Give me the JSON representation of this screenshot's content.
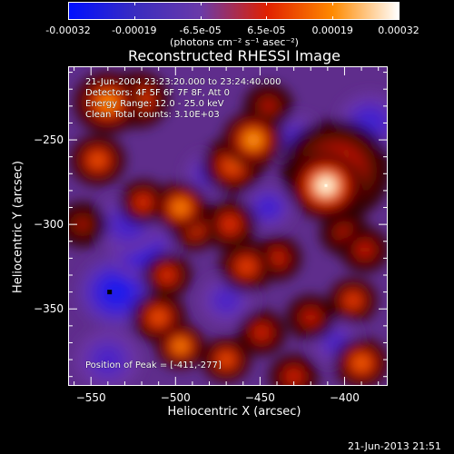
{
  "colorbar": {
    "tick_labels": [
      "-0.00032",
      "-0.00019",
      "-6.5e-05",
      "6.5e-05",
      "0.00019",
      "0.00032"
    ],
    "units": "(photons cm⁻² s⁻¹ asec⁻²)",
    "range": [
      -0.00032,
      0.00032
    ],
    "colors": [
      "#0010ff",
      "#3a2cc0",
      "#6a3aa8",
      "#e02000",
      "#ff8a00",
      "#ffffff"
    ]
  },
  "title": "Reconstructed RHESSI Image",
  "info_lines": [
    "21-Jun-2004 23:23:20.000 to 23:24:40.000",
    "Detectors: 4F 5F 6F 7F 8F, Att 0",
    "Energy Range: 12.0 - 25.0 keV",
    "Clean     Total counts: 3.10E+03"
  ],
  "peak_text": "Position of Peak = [-411,-277]",
  "peak_marker": {
    "x": -411,
    "y": -277
  },
  "min_marker": {
    "x": -539,
    "y": -340
  },
  "axes": {
    "xlabel": "Heliocentric X (arcsec)",
    "ylabel": "Heliocentric Y (arcsec)",
    "xlim": [
      -563,
      -375
    ],
    "ylim": [
      -395,
      -207
    ],
    "xtick_values": [
      -550,
      -500,
      -450,
      -400
    ],
    "xtick_labels": [
      "−550",
      "−500",
      "−450",
      "−400"
    ],
    "ytick_values": [
      -250,
      -300,
      -350
    ],
    "ytick_labels": [
      "−250",
      "−300",
      "−350"
    ]
  },
  "footer_timestamp": "21-Jun-2013 21:51",
  "chart_data": {
    "type": "heatmap",
    "title": "Reconstructed RHESSI Image",
    "xlabel": "Heliocentric X (arcsec)",
    "ylabel": "Heliocentric Y (arcsec)",
    "xlim": [
      -563,
      -375
    ],
    "ylim": [
      -395,
      -207
    ],
    "colorbar_range": [
      -0.00032,
      0.00032
    ],
    "colorbar_units": "(photons cm⁻² s⁻¹ asec⁻²)",
    "peak": [
      -411,
      -277
    ],
    "blobs": [
      {
        "x": -411,
        "y": -277,
        "v": 1.0,
        "s": 12
      },
      {
        "x": -405,
        "y": -268,
        "v": 0.55,
        "s": 18
      },
      {
        "x": -454,
        "y": -250,
        "v": 0.75,
        "s": 10
      },
      {
        "x": -466,
        "y": -265,
        "v": 0.55,
        "s": 10
      },
      {
        "x": -540,
        "y": -228,
        "v": 0.7,
        "s": 11
      },
      {
        "x": -522,
        "y": -226,
        "v": 0.55,
        "s": 10
      },
      {
        "x": -546,
        "y": -262,
        "v": 0.55,
        "s": 9
      },
      {
        "x": -497,
        "y": -290,
        "v": 0.7,
        "s": 9
      },
      {
        "x": -489,
        "y": -302,
        "v": 0.5,
        "s": 8
      },
      {
        "x": -468,
        "y": -300,
        "v": 0.45,
        "s": 9
      },
      {
        "x": -519,
        "y": -287,
        "v": 0.45,
        "s": 8
      },
      {
        "x": -458,
        "y": -325,
        "v": 0.5,
        "s": 9
      },
      {
        "x": -440,
        "y": -320,
        "v": 0.4,
        "s": 8
      },
      {
        "x": -505,
        "y": -330,
        "v": 0.45,
        "s": 8
      },
      {
        "x": -400,
        "y": -305,
        "v": 0.3,
        "s": 8
      },
      {
        "x": -388,
        "y": -315,
        "v": 0.35,
        "s": 8
      },
      {
        "x": -510,
        "y": -355,
        "v": 0.55,
        "s": 9
      },
      {
        "x": -497,
        "y": -372,
        "v": 0.7,
        "s": 8
      },
      {
        "x": -470,
        "y": -380,
        "v": 0.55,
        "s": 8
      },
      {
        "x": -449,
        "y": -364,
        "v": 0.4,
        "s": 8
      },
      {
        "x": -420,
        "y": -355,
        "v": 0.35,
        "s": 8
      },
      {
        "x": -395,
        "y": -345,
        "v": 0.5,
        "s": 8
      },
      {
        "x": -390,
        "y": -382,
        "v": 0.6,
        "s": 9
      },
      {
        "x": -430,
        "y": -390,
        "v": 0.4,
        "s": 8
      },
      {
        "x": -555,
        "y": -300,
        "v": 0.25,
        "s": 8
      },
      {
        "x": -445,
        "y": -230,
        "v": 0.3,
        "s": 8
      },
      {
        "x": -535,
        "y": -340,
        "v": -0.7,
        "s": 14
      },
      {
        "x": -520,
        "y": -315,
        "v": -0.55,
        "s": 12
      },
      {
        "x": -528,
        "y": -300,
        "v": -0.35,
        "s": 12
      },
      {
        "x": -480,
        "y": -270,
        "v": -0.35,
        "s": 9
      },
      {
        "x": -445,
        "y": -290,
        "v": -0.4,
        "s": 9
      },
      {
        "x": -428,
        "y": -250,
        "v": -0.35,
        "s": 10
      },
      {
        "x": -385,
        "y": -240,
        "v": -0.4,
        "s": 12
      },
      {
        "x": -470,
        "y": -345,
        "v": -0.3,
        "s": 10
      },
      {
        "x": -540,
        "y": -380,
        "v": -0.3,
        "s": 12
      },
      {
        "x": -405,
        "y": -370,
        "v": -0.3,
        "s": 9
      }
    ]
  }
}
